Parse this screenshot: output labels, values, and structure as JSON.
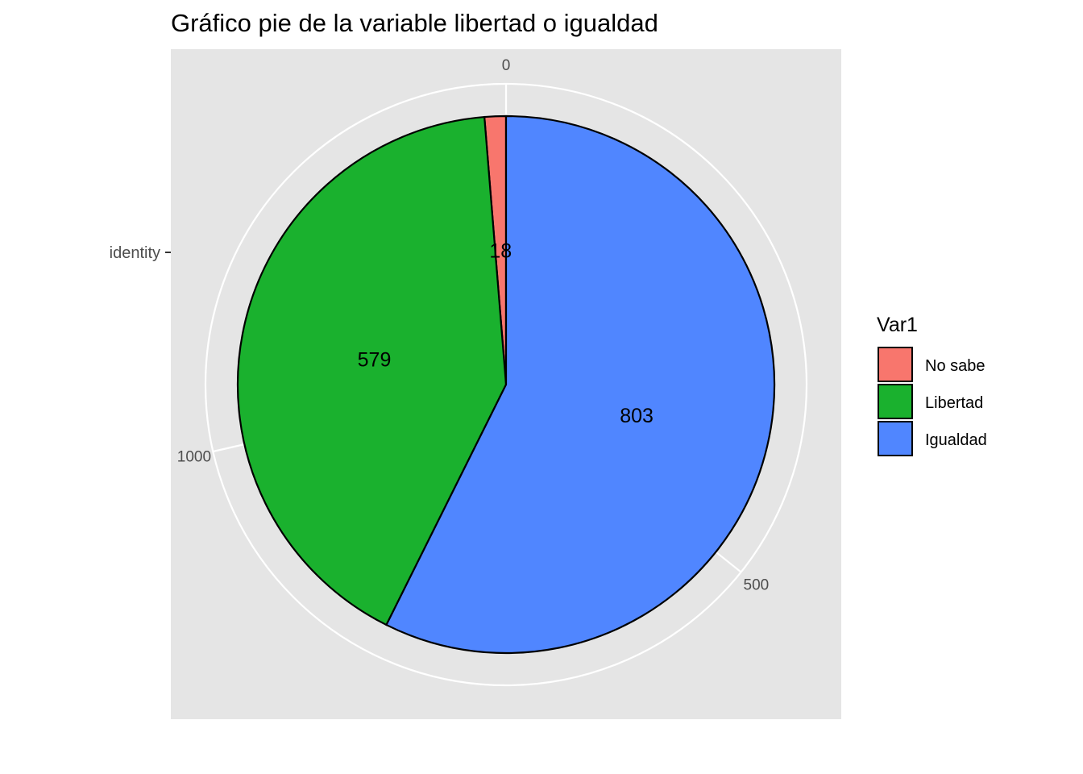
{
  "chart_data": {
    "type": "pie",
    "title": "Gráfico pie de la variable libertad o igualdad",
    "categories": [
      "No sabe",
      "Libertad",
      "Igualdad"
    ],
    "values": [
      18,
      579,
      803
    ],
    "colors": [
      "#F8766D",
      "#1AB12E",
      "#5086FF"
    ],
    "legend": {
      "title": "Var1",
      "placement": "right",
      "entries": [
        "No sabe",
        "Libertad",
        "Igualdad"
      ]
    },
    "y_axis_label": "identity",
    "theta_axis": {
      "ticks": [
        0,
        500,
        1000
      ],
      "tick_labels": [
        "0",
        "500",
        "1000"
      ],
      "max": 1400
    },
    "panel_background": "#E5E5E5",
    "grid_color": "#FFFFFF",
    "slice_outline": "#000000",
    "grid": true
  }
}
